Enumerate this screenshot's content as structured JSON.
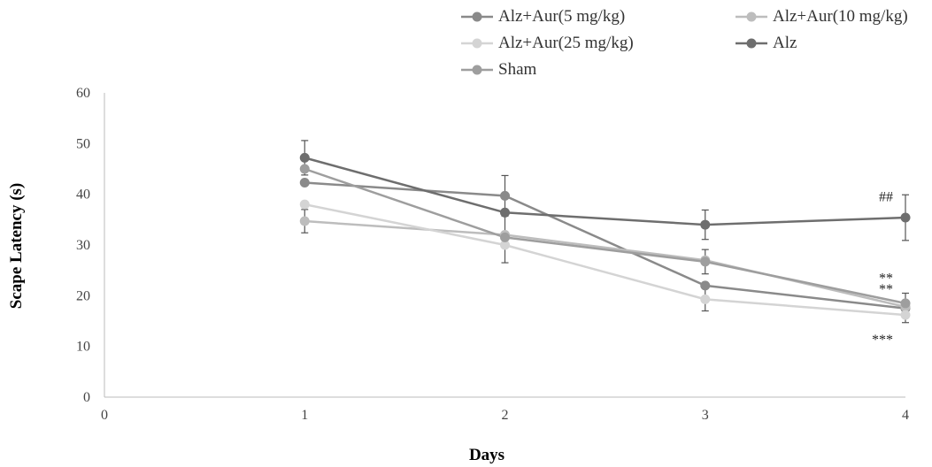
{
  "chart_data": {
    "type": "line",
    "xlabel": "Days",
    "ylabel": "Scape Latency (s)",
    "xlim": [
      0,
      4
    ],
    "ylim": [
      0,
      60
    ],
    "x_ticks": [
      0,
      1,
      2,
      3,
      4
    ],
    "y_ticks": [
      0,
      10,
      20,
      30,
      40,
      50,
      60
    ],
    "grid": false,
    "legend_position": "top-right",
    "x": [
      1,
      2,
      3,
      4
    ],
    "series": [
      {
        "name": "Alz+Aur(5 mg/kg)",
        "values": [
          42.3,
          39.7,
          22.0,
          17.5
        ],
        "errors": [
          0,
          4.0,
          0,
          0
        ],
        "color": "#8a8a8a"
      },
      {
        "name": "Alz+Aur(10 mg/kg)",
        "values": [
          34.7,
          32.0,
          27.0,
          17.8
        ],
        "errors": [
          2.3,
          0,
          0,
          0
        ],
        "color": "#bdbdbd"
      },
      {
        "name": "Alz+Aur(25 mg/kg)",
        "values": [
          38.0,
          30.0,
          19.3,
          16.2
        ],
        "errors": [
          0,
          0,
          2.3,
          1.5
        ],
        "color": "#d4d4d4"
      },
      {
        "name": "Alz",
        "values": [
          47.2,
          36.4,
          34.0,
          35.4
        ],
        "errors": [
          3.4,
          0,
          2.9,
          4.5
        ],
        "color": "#6e6e6e"
      },
      {
        "name": "Sham",
        "values": [
          45.0,
          31.5,
          26.7,
          18.5
        ],
        "errors": [
          0,
          5.0,
          2.4,
          2.0
        ],
        "color": "#9e9e9e"
      }
    ],
    "annotations": [
      {
        "text": "##",
        "x": 4,
        "y": 39.5
      },
      {
        "text": "**",
        "x": 4,
        "y": 23.5
      },
      {
        "text": "**",
        "x": 4,
        "y": 21.3
      },
      {
        "text": "***",
        "x": 4,
        "y": 11.3
      }
    ]
  }
}
